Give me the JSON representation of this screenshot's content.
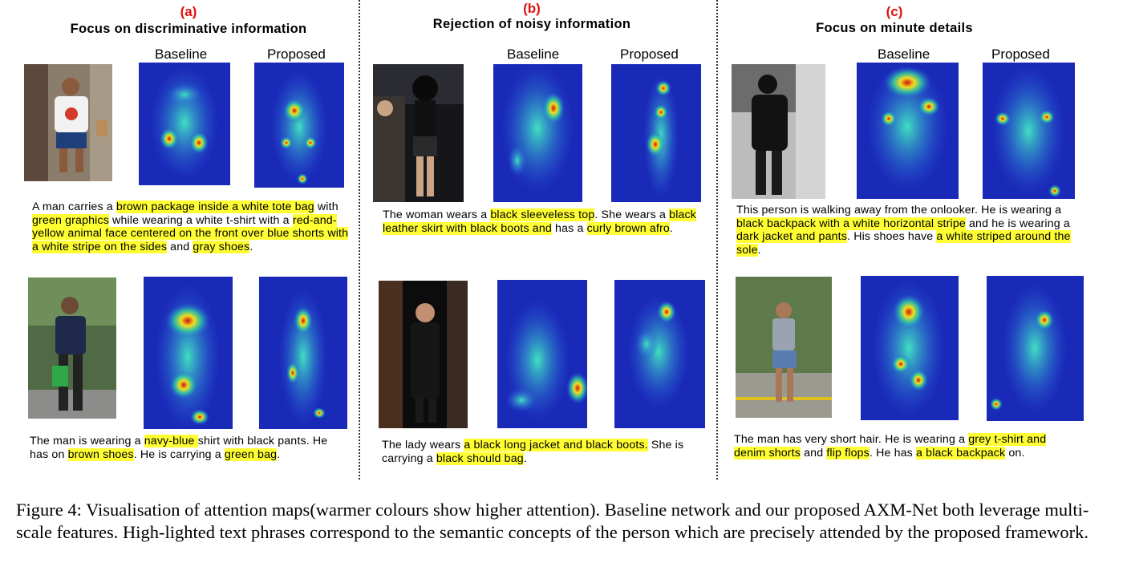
{
  "panels": {
    "a": {
      "label": "(a)",
      "title": "Focus on discriminative information",
      "baseline": "Baseline",
      "proposed": "Proposed"
    },
    "b": {
      "label": "(b)",
      "title": "Rejection of noisy information",
      "baseline": "Baseline",
      "proposed": "Proposed"
    },
    "c": {
      "label": "(c)",
      "title": "Focus on minute details",
      "baseline": "Baseline",
      "proposed": "Proposed"
    }
  },
  "captions": {
    "a1": [
      "A man carries a ",
      "brown package inside a white tote bag",
      " with ",
      "green graphics",
      " while wearing a white t-shirt with a ",
      "red-and-yellow  animal face centered on the front  over blue shorts with a white stripe on the sides",
      " and ",
      "gray shoes",
      "."
    ],
    "a2": [
      "The man is wearing a ",
      "navy-blue ",
      " shirt with black pants. He has on ",
      "brown shoes",
      ". He is carrying a ",
      "green bag",
      "."
    ],
    "b1": [
      "The woman wears a ",
      "black sleeveless top",
      ". She wears a ",
      "black leather skirt with black boots and",
      " has a ",
      "curly  brown afro",
      "."
    ],
    "b2": [
      "The lady wears ",
      "a black long jacket and black boots.",
      " She is carrying a ",
      "black should bag",
      "."
    ],
    "c1": [
      "This person is walking away from the onlooker.  He is wearing a ",
      "black backpack with a white horizontal stripe",
      " and he is wearing a ",
      "dark jacket and pants",
      ".  His shoes have ",
      "a white striped around the sole",
      "."
    ],
    "c2": [
      "The man has very short hair. He is wearing a ",
      "grey t-shirt and denim shorts",
      " and ",
      "flip flops",
      ". He has ",
      "a black backpack",
      " on."
    ]
  },
  "figure_caption": "Figure 4: Visualisation of attention maps(warmer colours show higher attention). Baseline network and our proposed AXM-Net both leverage multi-scale features. High-lighted text phrases correspond to the semantic concepts of the person which are precisely attended by the proposed framework.",
  "colors": {
    "panel_label": "#e01010",
    "highlight": "#ffff33",
    "heat_low": "#1a2ab8",
    "heat_high": "#d01010"
  }
}
